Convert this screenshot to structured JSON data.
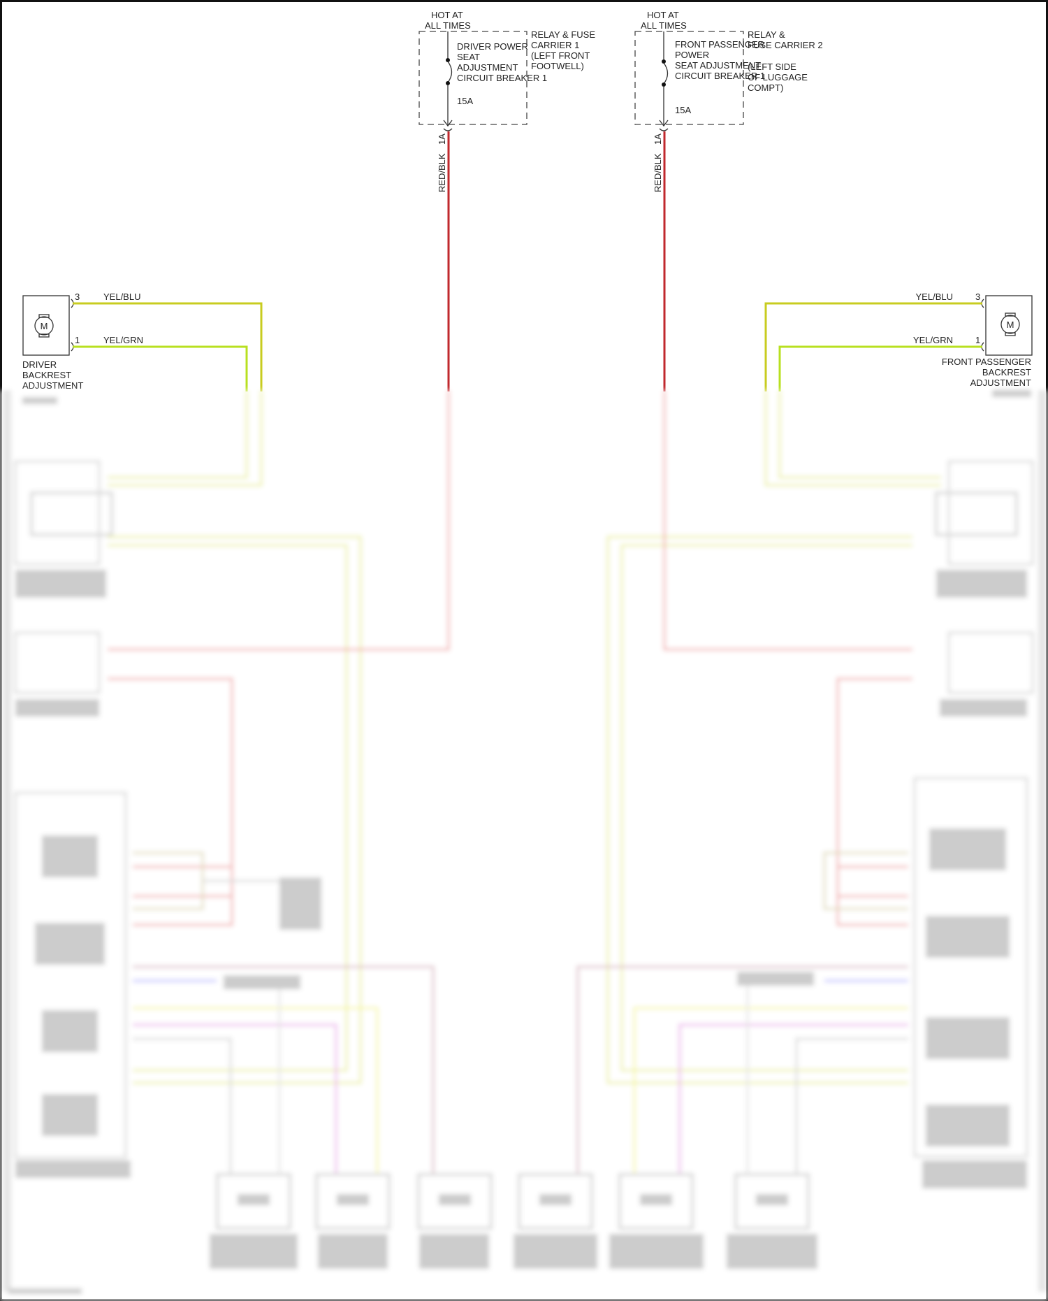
{
  "fuses": [
    {
      "hot_label": [
        "HOT AT",
        "ALL TIMES"
      ],
      "breaker_label": [
        "DRIVER POWER",
        "SEAT",
        "ADJUSTMENT",
        "CIRCUIT BREAKER 1"
      ],
      "rating": "15A",
      "carrier_label": [
        "RELAY & FUSE",
        "CARRIER 1",
        "(LEFT FRONT",
        "FOOTWELL)"
      ],
      "pin": "1A",
      "wire": "RED/BLK"
    },
    {
      "hot_label": [
        "HOT AT",
        "ALL TIMES"
      ],
      "breaker_label": [
        "FRONT PASSENGER",
        "POWER",
        "SEAT ADJUSTMENT",
        "CIRCUIT BREAKER 1"
      ],
      "rating": "15A",
      "carrier_label": [
        "RELAY &",
        "FUSE CARRIER 2",
        "(LEFT SIDE",
        "OF LUGGAGE",
        "COMPT)"
      ],
      "pin": "1A",
      "wire": "RED/BLK"
    }
  ],
  "motors": [
    {
      "symbol": "M",
      "label": [
        "DRIVER",
        "BACKREST",
        "ADJUSTMENT"
      ],
      "pins": [
        {
          "num": "3",
          "wire": "YEL/BLU"
        },
        {
          "num": "1",
          "wire": "YEL/GRN"
        }
      ]
    },
    {
      "symbol": "M",
      "label": [
        "FRONT PASSENGER",
        "BACKREST",
        "ADJUSTMENT"
      ],
      "pins": [
        {
          "num": "3",
          "wire": "YEL/BLU"
        },
        {
          "num": "1",
          "wire": "YEL/GRN"
        }
      ]
    }
  ],
  "colors": {
    "red": "#c0282d",
    "yellow": "#d8e000",
    "magenta": "#e070e0",
    "blue": "#8080ff",
    "pink": "#c890a0",
    "grey": "#b8b8b8"
  }
}
